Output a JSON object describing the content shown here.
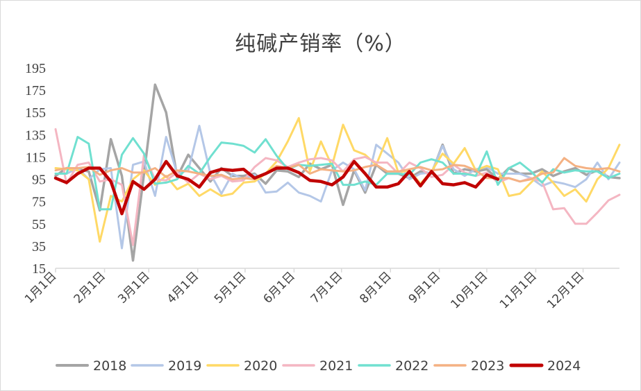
{
  "chart_data": {
    "type": "line",
    "title": "纯碱产销率（%）",
    "xlabel": "",
    "ylabel": "",
    "ylim": [
      15,
      195
    ],
    "yticks": [
      195,
      175,
      155,
      135,
      115,
      95,
      75,
      55,
      35,
      15
    ],
    "x_ticks": [
      "1月1日",
      "2月1日",
      "3月1日",
      "4月1日",
      "5月1日",
      "6月1日",
      "7月1日",
      "8月1日",
      "9月1日",
      "10月1日",
      "11月1日",
      "12月1日"
    ],
    "grid": false,
    "legend_position": "bottom",
    "series": [
      {
        "name": "2018",
        "color": "#a5a5a5",
        "width": 3.5,
        "values": [
          98,
          105,
          104,
          102,
          67,
          131,
          98,
          22,
          100,
          180,
          155,
          97,
          117,
          105,
          93,
          105,
          98,
          98,
          100,
          91,
          103,
          102,
          97,
          109,
          104,
          108,
          72,
          103,
          83,
          108,
          100,
          100,
          96,
          102,
          100,
          126,
          100,
          104,
          102,
          104,
          95,
          105,
          100,
          100,
          104,
          98,
          102,
          105,
          99,
          103,
          97,
          96
        ]
      },
      {
        "name": "2019",
        "color": "#b4c7e7",
        "width": 3,
        "values": [
          100,
          100,
          105,
          95,
          104,
          105,
          33,
          108,
          111,
          80,
          133,
          100,
          103,
          143,
          100,
          82,
          100,
          95,
          99,
          83,
          84,
          92,
          83,
          80,
          75,
          103,
          110,
          104,
          85,
          126,
          118,
          110,
          95,
          100,
          101,
          125,
          104,
          98,
          104,
          106,
          100,
          100,
          100,
          96,
          89,
          93,
          91,
          88,
          95,
          110,
          95,
          110
        ]
      },
      {
        "name": "2020",
        "color": "#ffd966",
        "width": 3,
        "values": [
          105,
          104,
          103,
          95,
          39,
          80,
          75,
          95,
          103,
          90,
          98,
          86,
          91,
          80,
          86,
          80,
          82,
          92,
          93,
          100,
          111,
          129,
          150,
          102,
          129,
          107,
          144,
          121,
          117,
          108,
          132,
          101,
          103,
          91,
          102,
          118,
          109,
          123,
          103,
          107,
          104,
          80,
          82,
          92,
          102,
          92,
          80,
          86,
          75,
          95,
          105,
          126
        ]
      },
      {
        "name": "2021",
        "color": "#f4b6c2",
        "width": 3,
        "values": [
          140,
          91,
          108,
          110,
          93,
          95,
          90,
          36,
          117,
          95,
          94,
          101,
          92,
          100,
          95,
          98,
          93,
          94,
          106,
          114,
          112,
          106,
          110,
          113,
          114,
          112,
          102,
          113,
          115,
          110,
          110,
          100,
          110,
          105,
          97,
          99,
          108,
          101,
          98,
          101,
          92,
          96,
          93,
          96,
          93,
          68,
          69,
          55,
          55,
          65,
          76,
          81
        ]
      },
      {
        "name": "2022",
        "color": "#70e0d0",
        "width": 3,
        "values": [
          100,
          100,
          133,
          127,
          68,
          68,
          117,
          132,
          118,
          91,
          92,
          95,
          107,
          100,
          115,
          128,
          127,
          125,
          119,
          131,
          116,
          104,
          108,
          107,
          108,
          109,
          90,
          90,
          93,
          90,
          100,
          100,
          99,
          110,
          113,
          110,
          100,
          100,
          98,
          120,
          90,
          105,
          110,
          102,
          92,
          104,
          101,
          103,
          102,
          102,
          96,
          100
        ]
      },
      {
        "name": "2023",
        "color": "#f4b183",
        "width": 3,
        "values": [
          103,
          105,
          105,
          106,
          99,
          103,
          105,
          101,
          101,
          105,
          97,
          103,
          102,
          100,
          98,
          99,
          95,
          96,
          95,
          100,
          107,
          105,
          108,
          100,
          104,
          103,
          102,
          103,
          106,
          108,
          102,
          102,
          104,
          106,
          103,
          104,
          108,
          107,
          103,
          96,
          96,
          96,
          93,
          95,
          100,
          101,
          114,
          107,
          105,
          104,
          105,
          102
        ]
      },
      {
        "name": "2024",
        "color": "#c00000",
        "width": 4.5,
        "values": [
          96,
          92,
          100,
          105,
          105,
          93,
          64,
          93,
          86,
          95,
          111,
          98,
          95,
          88,
          101,
          104,
          103,
          104,
          96,
          100,
          105,
          105,
          101,
          94,
          93,
          90,
          97,
          111,
          100,
          88,
          88,
          91,
          102,
          89,
          102,
          91,
          90,
          92,
          88,
          99,
          95,
          null,
          null,
          null,
          null,
          null,
          null,
          null,
          null,
          null,
          null,
          null
        ]
      }
    ]
  }
}
